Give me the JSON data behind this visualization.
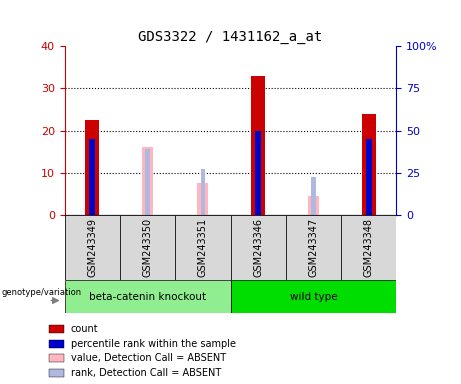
{
  "title": "GDS3322 / 1431162_a_at",
  "samples": [
    "GSM243349",
    "GSM243350",
    "GSM243351",
    "GSM243346",
    "GSM243347",
    "GSM243348"
  ],
  "group_labels": [
    "beta-catenin knockout",
    "wild type"
  ],
  "group_color_light": "#90ee90",
  "group_color_dark": "#00dd00",
  "count_values": [
    22.5,
    0,
    0,
    33.0,
    0,
    24.0
  ],
  "percentile_values": [
    45.0,
    0,
    0,
    50.0,
    0,
    45.0
  ],
  "absent_value_values": [
    0,
    16.0,
    7.5,
    0,
    4.5,
    0
  ],
  "absent_rank_values": [
    0,
    39.0,
    27.5,
    0,
    22.5,
    0
  ],
  "left_ylim": [
    0,
    40
  ],
  "right_ylim": [
    0,
    100
  ],
  "left_yticks": [
    0,
    10,
    20,
    30,
    40
  ],
  "right_yticks": [
    0,
    25,
    50,
    75,
    100
  ],
  "right_yticklabels": [
    "0",
    "25",
    "50",
    "75",
    "100%"
  ],
  "left_color": "#cc0000",
  "right_color": "#0000cc",
  "absent_value_color": "#ffb6c1",
  "absent_rank_color": "#b0b8e0",
  "count_bar_width": 0.25,
  "rank_bar_width": 0.1,
  "absent_bar_width": 0.2,
  "absent_rank_bar_width": 0.08,
  "background_color": "#d8d8d8",
  "legend_items": [
    "count",
    "percentile rank within the sample",
    "value, Detection Call = ABSENT",
    "rank, Detection Call = ABSENT"
  ],
  "legend_colors": [
    "#cc0000",
    "#0000cc",
    "#ffb6c1",
    "#b0b8e0"
  ]
}
